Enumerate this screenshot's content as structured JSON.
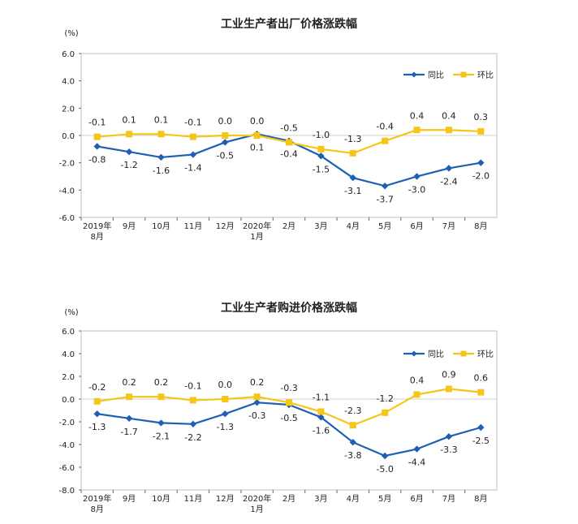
{
  "colors": {
    "yoy": "#1f5fb3",
    "mom": "#f5c518",
    "axis": "#333333",
    "grid": "#d9d9d9"
  },
  "chart_data": [
    {
      "type": "line",
      "title": "工业生产者出厂价格涨跌幅",
      "unit": "(%)",
      "categories": [
        "2019年\n8月",
        "9月",
        "10月",
        "11月",
        "12月",
        "2020年\n1月",
        "2月",
        "3月",
        "4月",
        "5月",
        "6月",
        "7月",
        "8月"
      ],
      "ylim": [
        -6,
        6
      ],
      "yticks": [
        "6.0",
        "4.0",
        "2.0",
        "0.0",
        "-2.0",
        "-4.0",
        "-6.0"
      ],
      "ytick_values": [
        6,
        4,
        2,
        0,
        -2,
        -4,
        -6
      ],
      "legend_position": "top-right",
      "series": [
        {
          "name": "同比",
          "values": [
            -0.8,
            -1.2,
            -1.6,
            -1.4,
            -0.5,
            0.1,
            -0.4,
            -1.5,
            -3.1,
            -3.7,
            -3.0,
            -2.4,
            -2.0
          ],
          "labels": [
            "-0.8",
            "-1.2",
            "-1.6",
            "-1.4",
            "-0.5",
            "0.1",
            "-0.4",
            "-1.5",
            "-3.1",
            "-3.7",
            "-3.0",
            "-2.4",
            "-2.0"
          ]
        },
        {
          "name": "环比",
          "values": [
            -0.1,
            0.1,
            0.1,
            -0.1,
            0.0,
            0.0,
            -0.5,
            -1.0,
            -1.3,
            -0.4,
            0.4,
            0.4,
            0.3
          ],
          "labels": [
            "-0.1",
            "0.1",
            "0.1",
            "-0.1",
            "0.0",
            "0.0",
            "-0.5",
            "-1.0",
            "-1.3",
            "-0.4",
            "0.4",
            "0.4",
            "0.3"
          ]
        }
      ]
    },
    {
      "type": "line",
      "title": "工业生产者购进价格涨跌幅",
      "unit": "(%)",
      "categories": [
        "2019年\n8月",
        "9月",
        "10月",
        "11月",
        "12月",
        "2020年\n1月",
        "2月",
        "3月",
        "4月",
        "5月",
        "6月",
        "7月",
        "8月"
      ],
      "ylim": [
        -8,
        6
      ],
      "yticks": [
        "6.0",
        "4.0",
        "2.0",
        "0.0",
        "-2.0",
        "-4.0",
        "-6.0",
        "-8.0"
      ],
      "ytick_values": [
        6,
        4,
        2,
        0,
        -2,
        -4,
        -6,
        -8
      ],
      "legend_position": "top-right",
      "series": [
        {
          "name": "同比",
          "values": [
            -1.3,
            -1.7,
            -2.1,
            -2.2,
            -1.3,
            -0.3,
            -0.5,
            -1.6,
            -3.8,
            -5.0,
            -4.4,
            -3.3,
            -2.5
          ],
          "labels": [
            "-1.3",
            "-1.7",
            "-2.1",
            "-2.2",
            "-1.3",
            "-0.3",
            "-0.5",
            "-1.6",
            "-3.8",
            "-5.0",
            "-4.4",
            "-3.3",
            "-2.5"
          ]
        },
        {
          "name": "环比",
          "values": [
            -0.2,
            0.2,
            0.2,
            -0.1,
            0.0,
            0.2,
            -0.3,
            -1.1,
            -2.3,
            -1.2,
            0.4,
            0.9,
            0.6
          ],
          "labels": [
            "-0.2",
            "0.2",
            "0.2",
            "-0.1",
            "0.0",
            "0.2",
            "-0.3",
            "-1.1",
            "-2.3",
            "-1.2",
            "0.4",
            "0.9",
            "0.6"
          ]
        }
      ]
    }
  ]
}
